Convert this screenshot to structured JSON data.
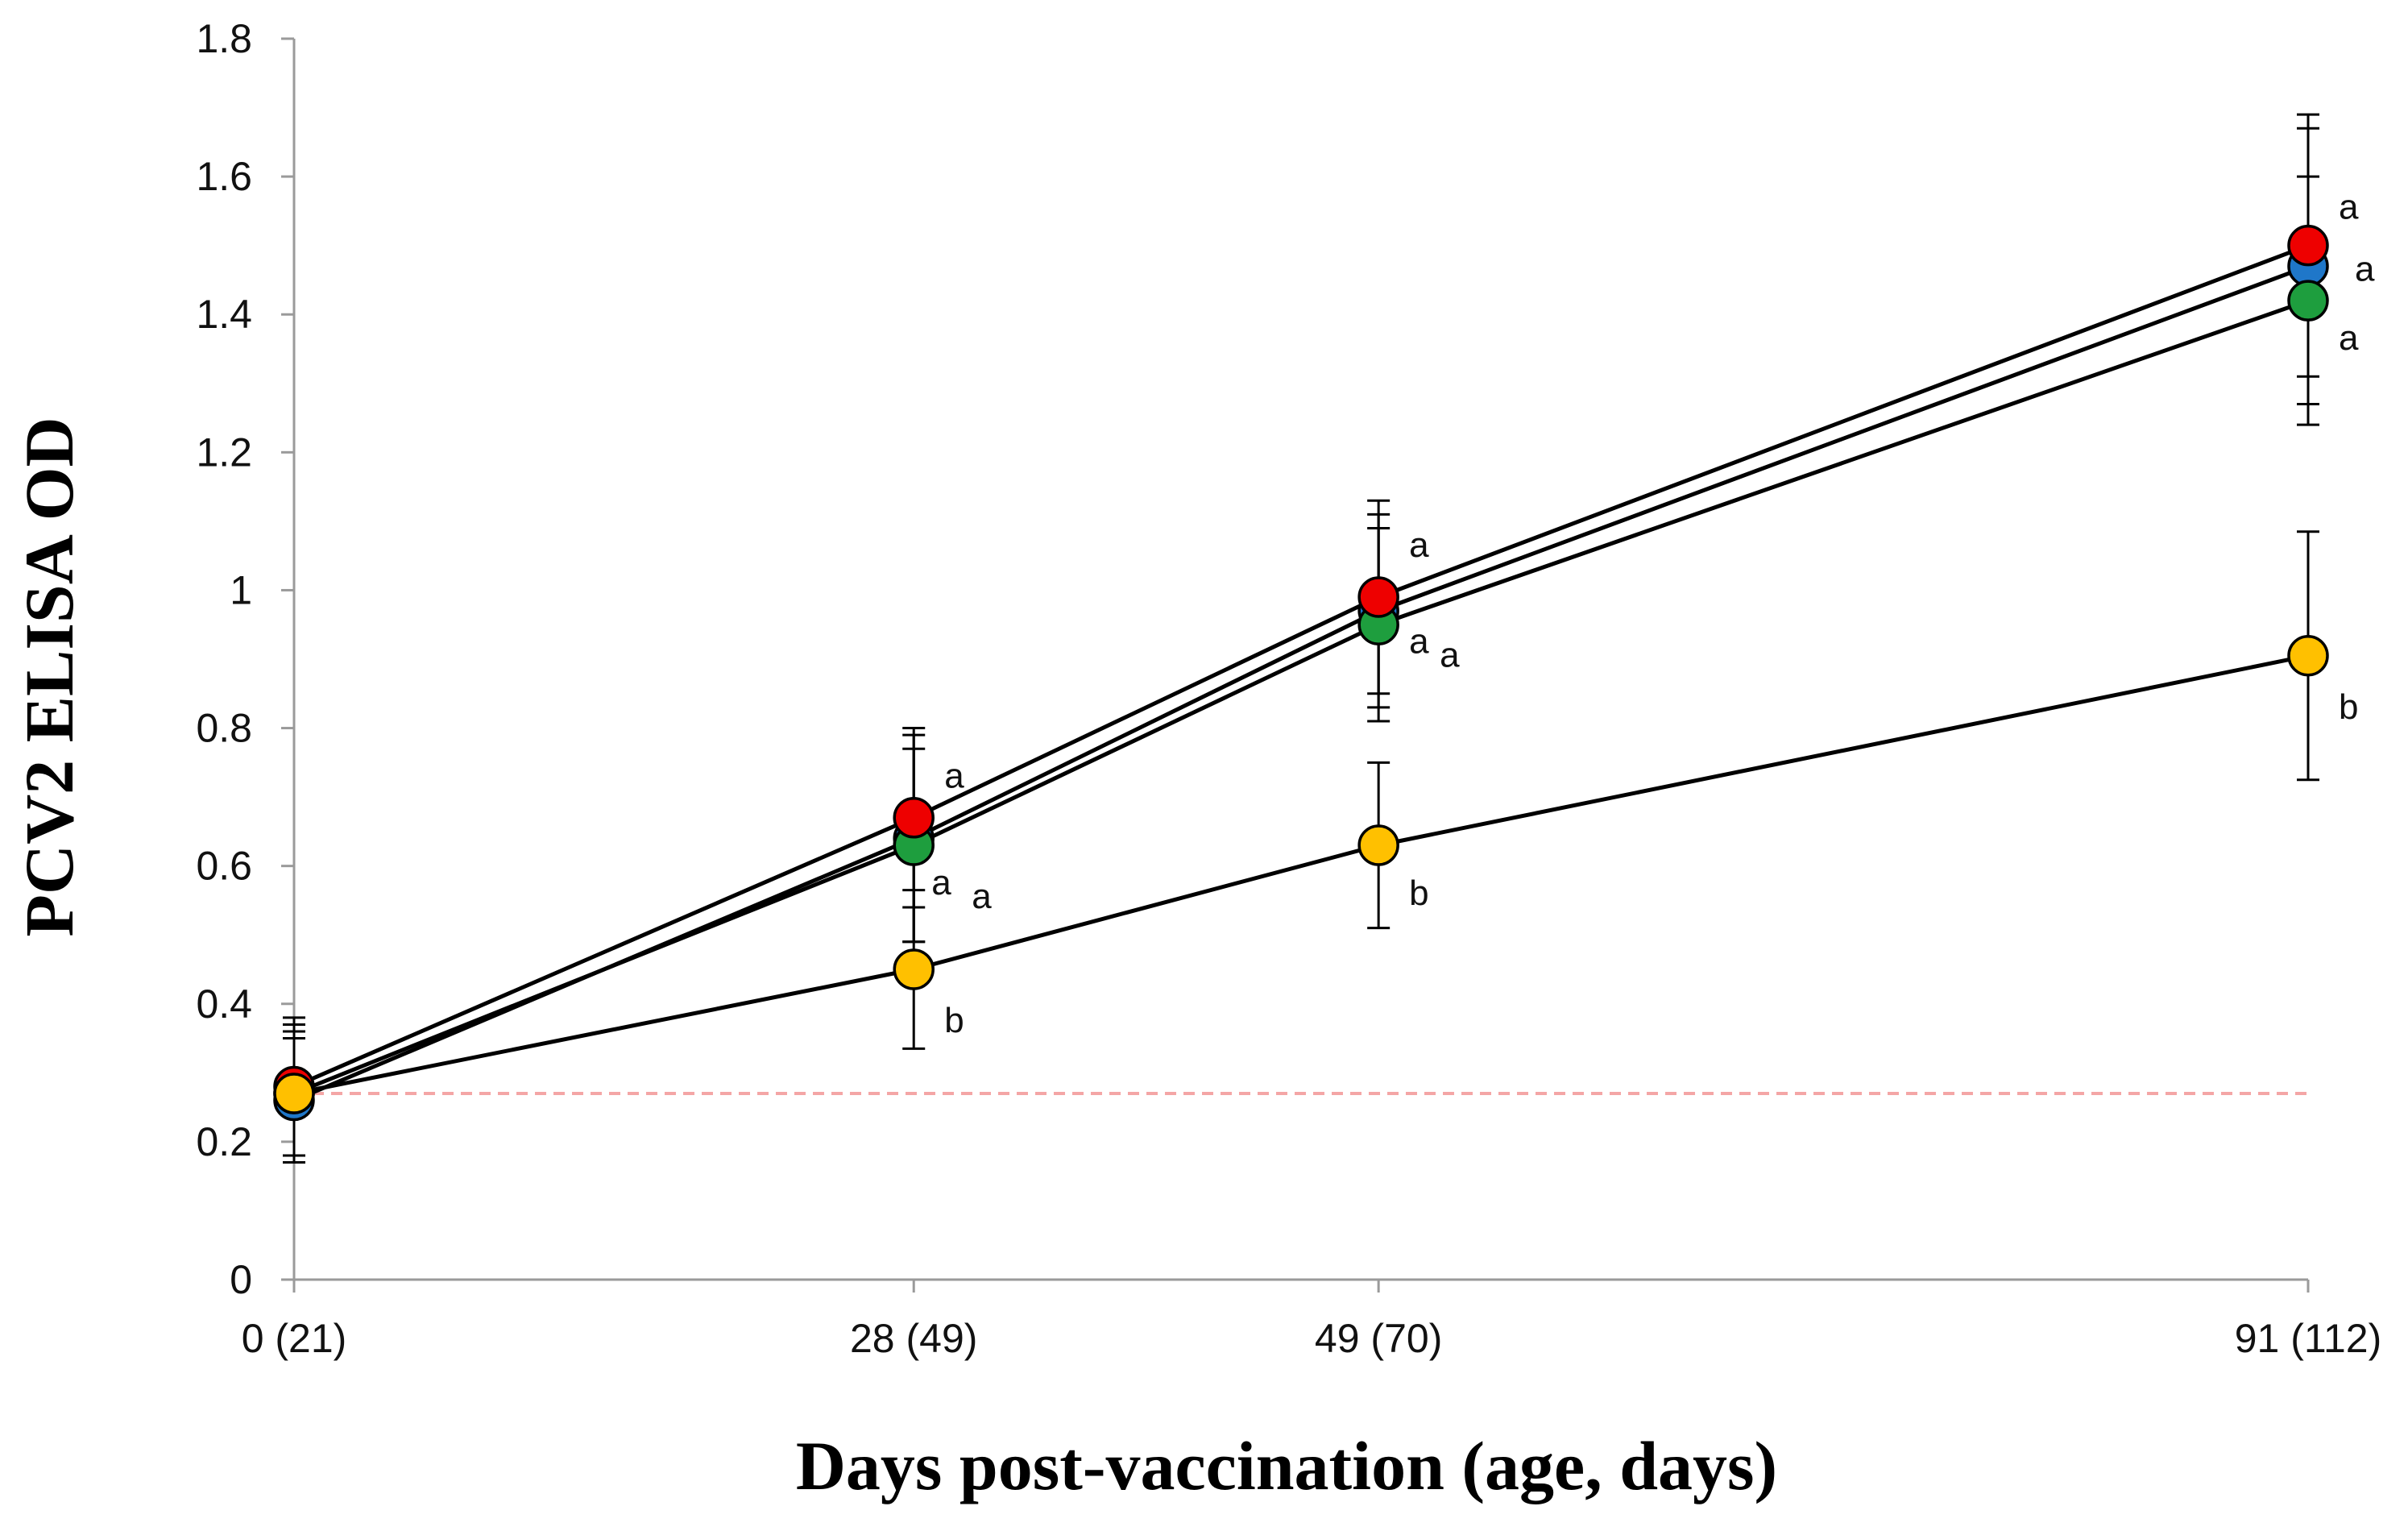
{
  "chart_data": {
    "type": "line",
    "title": "",
    "xlabel": "Days post-vaccination (age, days)",
    "ylabel": "PCV2 ELISA OD",
    "categories": [
      "0 (21)",
      "28 (49)",
      "49 (70)",
      "91 (112)"
    ],
    "x": [
      0,
      28,
      49,
      91
    ],
    "ylim": [
      0,
      1.8
    ],
    "yticks": [
      0,
      0.2,
      0.4,
      0.6,
      0.8,
      1,
      1.2,
      1.4,
      1.6,
      1.8
    ],
    "ytick_labels": [
      "0",
      "0.2",
      "0.4",
      "0.6",
      "0.8",
      "1",
      "1.2",
      "1.4",
      "1.6",
      "1.8"
    ],
    "grid": false,
    "legend": "none",
    "threshold": {
      "value": 0.27,
      "color": "#f4a6a6",
      "style": "dashed"
    },
    "series": [
      {
        "name": "blue group",
        "color": "#1f77c9",
        "values": [
          0.26,
          0.64,
          0.97,
          1.47
        ],
        "errors": [
          0.09,
          0.15,
          0.14,
          0.2
        ]
      },
      {
        "name": "green group",
        "color": "#1e9e3e",
        "values": [
          0.27,
          0.63,
          0.95,
          1.42
        ],
        "errors": [
          0.09,
          0.14,
          0.14,
          0.18
        ]
      },
      {
        "name": "red group",
        "color": "#ee0000",
        "values": [
          0.28,
          0.67,
          0.99,
          1.5
        ],
        "errors": [
          0.1,
          0.13,
          0.14,
          0.19
        ]
      },
      {
        "name": "yellow group",
        "color": "#ffc000",
        "values": [
          0.27,
          0.45,
          0.63,
          0.905
        ],
        "errors": [
          0.1,
          0.115,
          0.12,
          0.18
        ]
      }
    ],
    "annotations": [
      {
        "text": "a",
        "x": 28,
        "y": 0.73
      },
      {
        "text": "a",
        "x": 28,
        "y": 0.575
      },
      {
        "text": "a",
        "x": 28,
        "y": 0.555
      },
      {
        "text": "b",
        "x": 28,
        "y": 0.375
      },
      {
        "text": "a",
        "x": 49,
        "y": 1.065
      },
      {
        "text": "a",
        "x": 49,
        "y": 0.925
      },
      {
        "text": "a",
        "x": 49,
        "y": 0.905
      },
      {
        "text": "b",
        "x": 49,
        "y": 0.56
      },
      {
        "text": "a",
        "x": 91,
        "y": 1.555
      },
      {
        "text": "a",
        "x": 91,
        "y": 1.465
      },
      {
        "text": "a",
        "x": 91,
        "y": 1.365
      },
      {
        "text": "b",
        "x": 91,
        "y": 0.83
      }
    ]
  }
}
